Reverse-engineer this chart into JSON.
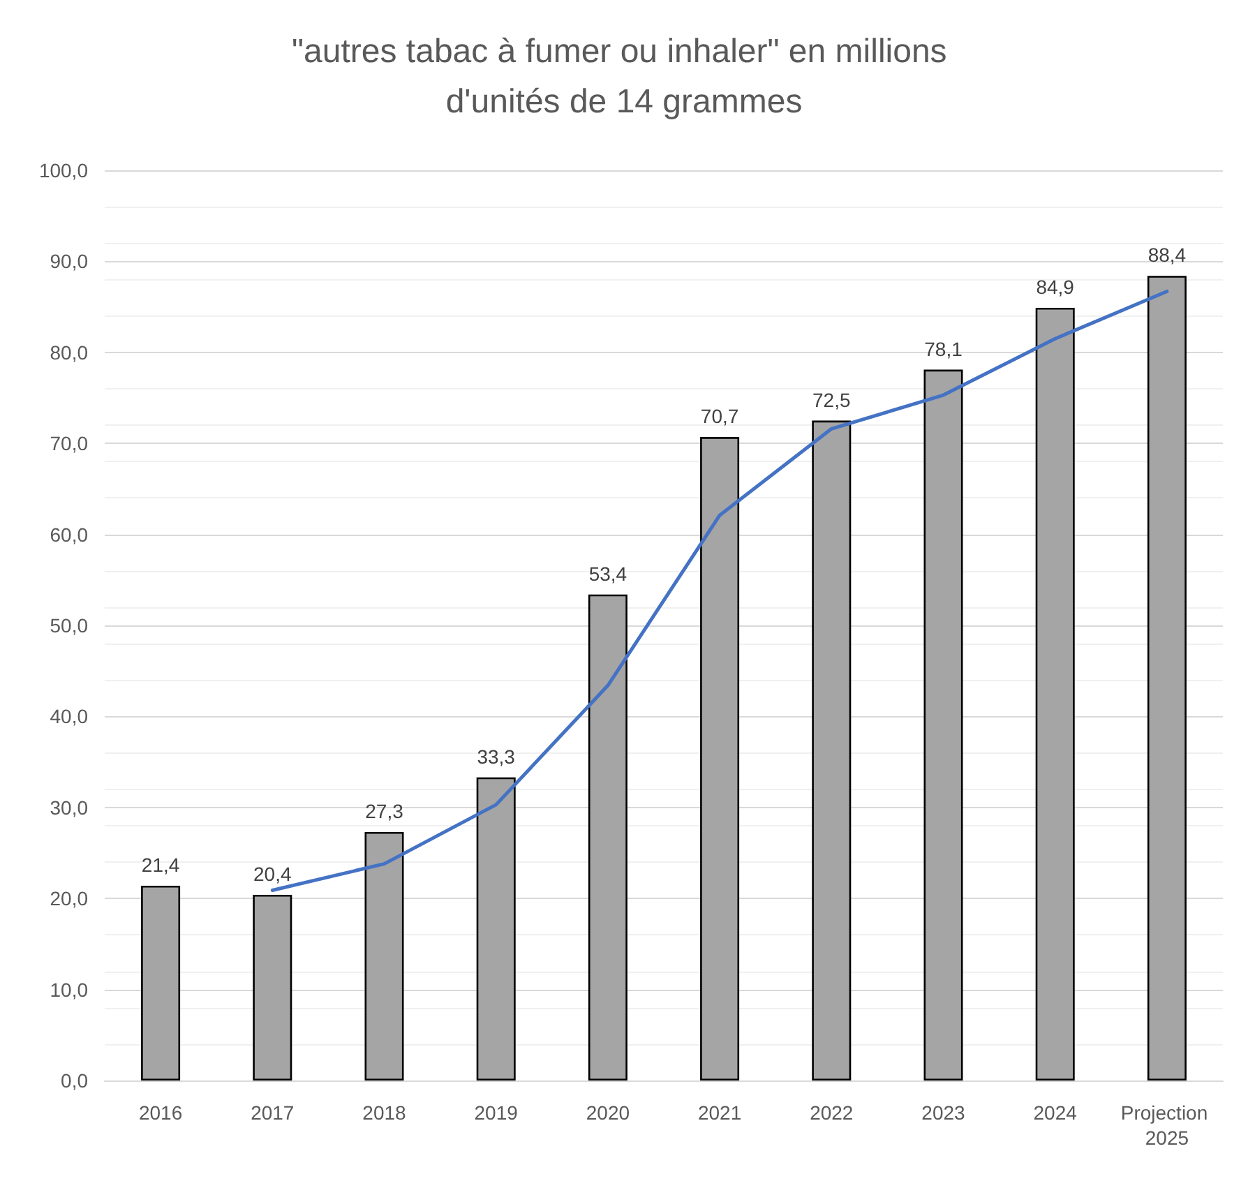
{
  "chart_data": {
    "type": "bar",
    "title": "\"autres tabac à fumer ou inhaler\" en millions d'unités de 14 grammes",
    "categories": [
      "2016",
      "2017",
      "2018",
      "2019",
      "2020",
      "2021",
      "2022",
      "2023",
      "2024",
      "Projection 2025"
    ],
    "series": [
      {
        "color": "#a5a5a5",
        "values": [
          21.4,
          20.4,
          27.3,
          33.3,
          53.4,
          70.7,
          72.5,
          78.1,
          84.9,
          88.4
        ],
        "value_labels": [
          "21,4",
          "20,4",
          "27,3",
          "33,3",
          "53,4",
          "70,7",
          "72,5",
          "78,1",
          "84,9",
          "88,4"
        ]
      },
      {
        "type": "line",
        "color": "#4472c4",
        "values": [
          null,
          20.9,
          23.8,
          30.3,
          43.4,
          62.1,
          71.6,
          75.3,
          81.5,
          86.7
        ],
        "marker": "none",
        "line_style": "solid"
      }
    ],
    "ylim": [
      0,
      100
    ],
    "yticks": [
      {
        "value": 0,
        "label": "0,0"
      },
      {
        "value": 10,
        "label": "10,0"
      },
      {
        "value": 20,
        "label": "20,0"
      },
      {
        "value": 30,
        "label": "30,0"
      },
      {
        "value": 40,
        "label": "40,0"
      },
      {
        "value": 50,
        "label": "50,0"
      },
      {
        "value": 60,
        "label": "60,0"
      },
      {
        "value": 70,
        "label": "70,0"
      },
      {
        "value": 80,
        "label": "80,0"
      },
      {
        "value": 90,
        "label": "90,0"
      },
      {
        "value": 100,
        "label": "100,0"
      }
    ],
    "grid": true
  }
}
